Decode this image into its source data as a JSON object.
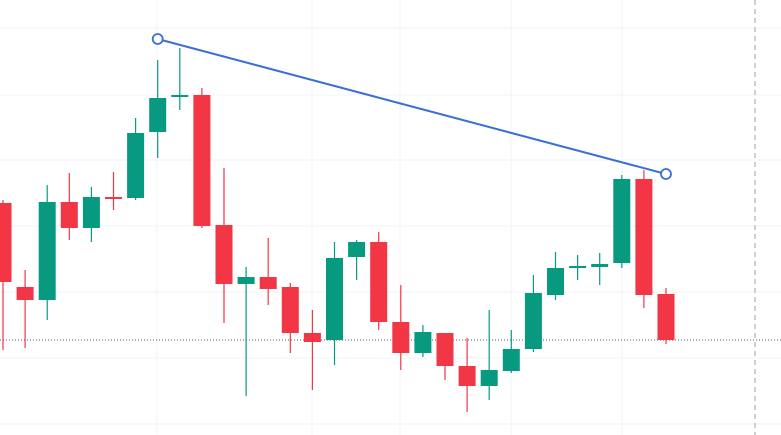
{
  "chart_data": {
    "type": "candlestick",
    "up_color": "#089981",
    "down_color": "#f23645",
    "ylim": [
      0,
      435
    ],
    "open": [
      232,
      148,
      135,
      233,
      207,
      238,
      237,
      303,
      338,
      340,
      210,
      151,
      158,
      148,
      102,
      95,
      178,
      193,
      113,
      82,
      102,
      69,
      49,
      64,
      86,
      140,
      167,
      168,
      172,
      256,
      141
    ],
    "high": [
      235,
      165,
      250,
      262,
      248,
      263,
      317,
      375,
      387,
      347,
      267,
      168,
      197,
      152,
      125,
      193,
      195,
      203,
      150,
      110,
      102,
      97,
      125,
      105,
      160,
      183,
      180,
      182,
      260,
      265,
      147
    ],
    "low": [
      85,
      87,
      115,
      195,
      193,
      225,
      235,
      277,
      325,
      207,
      112,
      39,
      130,
      82,
      45,
      70,
      155,
      105,
      65,
      78,
      55,
      23,
      35,
      62,
      83,
      135,
      155,
      150,
      167,
      127,
      91
    ],
    "close": [
      153,
      135,
      233,
      207,
      238,
      236,
      302,
      337,
      340,
      209,
      151,
      158,
      146,
      102,
      93,
      177,
      193,
      113,
      82,
      103,
      69,
      49,
      65,
      86,
      142,
      167,
      169,
      171,
      256,
      140,
      95
    ],
    "trend_line": {
      "x": [
        7,
        30
      ],
      "y": [
        396,
        261
      ],
      "color": "#3a6fd8"
    },
    "price_line": true
  }
}
